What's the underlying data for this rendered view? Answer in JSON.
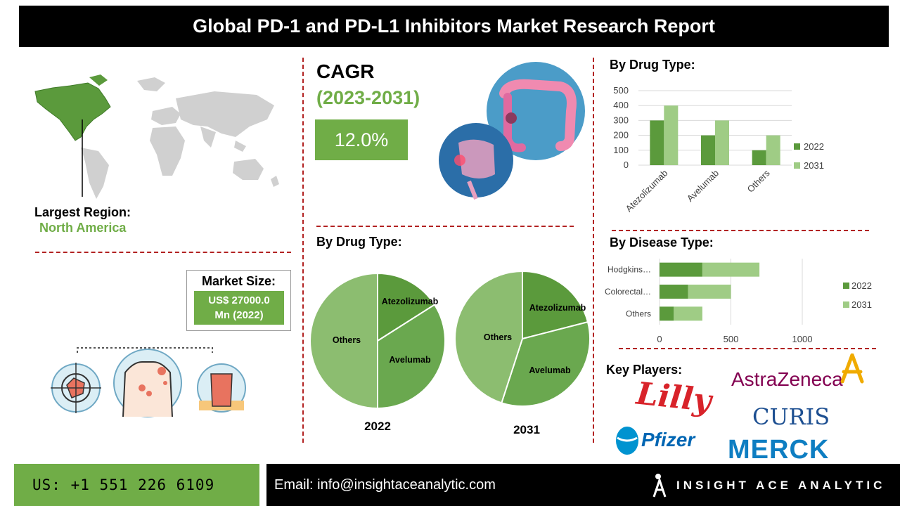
{
  "header": {
    "title": "Global PD-1 and PD-L1 Inhibitors Market Research Report"
  },
  "region": {
    "label": "Largest Region:",
    "value": "North America"
  },
  "cagr": {
    "label": "CAGR",
    "period": "(2023-2031)",
    "value": "12.0%"
  },
  "market_size": {
    "label": "Market Size:",
    "value_line1": "US$ 27000.0",
    "value_line2": "Mn (2022)"
  },
  "pie_section": {
    "title": "By Drug Type:"
  },
  "bar_section": {
    "title": "By Drug Type:"
  },
  "hbar_section": {
    "title": "By Disease Type:"
  },
  "key_players": {
    "title": "Key Players:",
    "logos": [
      "Lilly",
      "AstraZeneca",
      "CURIS",
      "Pfizer",
      "MERCK"
    ]
  },
  "footer": {
    "phone": "US: +1 551 226 6109",
    "email": "Email: info@insightaceanalytic.com",
    "brand": "INSIGHT ACE ANALYTIC"
  },
  "colors": {
    "dark_green": "#5b9a3c",
    "light_green": "#9fcc85",
    "pie_light": "#8cbd70",
    "accent_red": "#b22222"
  },
  "chart_data": [
    {
      "type": "bar",
      "categories": [
        "Atezolizumab",
        "Avelumab",
        "Others"
      ],
      "series": [
        {
          "name": "2022",
          "values": [
            300,
            200,
            100
          ]
        },
        {
          "name": "2031",
          "values": [
            400,
            300,
            200
          ]
        }
      ],
      "ylim": [
        0,
        500
      ],
      "yticks": [
        "0",
        "100",
        "200",
        "300",
        "400",
        "500"
      ],
      "legend": "right",
      "grid": true
    },
    {
      "type": "bar",
      "orientation": "horizontal",
      "stacked": true,
      "categories": [
        "Hodgkins…",
        "Colorectal…",
        "Others"
      ],
      "series": [
        {
          "name": "2022",
          "values": [
            300,
            200,
            100
          ]
        },
        {
          "name": "2031",
          "values": [
            400,
            300,
            200
          ]
        }
      ],
      "xlim": [
        0,
        1000
      ],
      "xticks": [
        "0",
        "500",
        "1000"
      ],
      "legend": "right",
      "grid": true
    },
    {
      "type": "pie",
      "label": "2022",
      "slices": [
        {
          "name": "Atezolizumab",
          "value": 16
        },
        {
          "name": "Avelumab",
          "value": 34
        },
        {
          "name": "Others",
          "value": 50
        }
      ]
    },
    {
      "type": "pie",
      "label": "2031",
      "slices": [
        {
          "name": "Atezolizumab",
          "value": 21
        },
        {
          "name": "Avelumab",
          "value": 34
        },
        {
          "name": "Others",
          "value": 45
        }
      ]
    }
  ]
}
